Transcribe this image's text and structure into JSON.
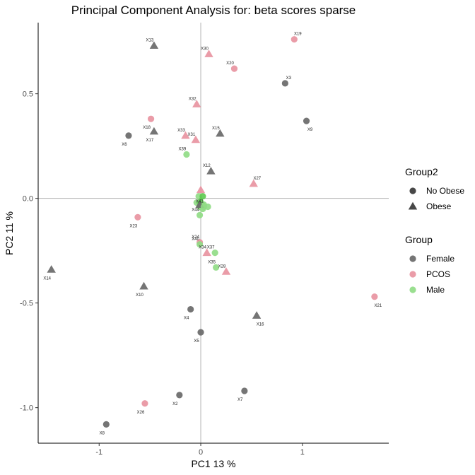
{
  "chart_data": {
    "type": "scatter",
    "title": "Principal Component Analysis for:  beta scores sparse",
    "xlabel": "PC1 13 %",
    "ylabel": "PC2 11 %",
    "xlim": [
      -1.6,
      1.85
    ],
    "ylim": [
      -1.17,
      0.84
    ],
    "xticks": [
      -1,
      0,
      1
    ],
    "xtick_labels": [
      "-1",
      "0",
      "1"
    ],
    "yticks": [
      -1.0,
      -0.5,
      0.0,
      0.5
    ],
    "ytick_labels": [
      "-1.0",
      "-0.5",
      "0.0",
      "0.5"
    ],
    "reference_lines": {
      "x": 0,
      "y": 0
    },
    "grid": false,
    "legend_position": "right",
    "legends": [
      {
        "title": "Group2",
        "entries": [
          {
            "label": "No Obese",
            "shape": "circle"
          },
          {
            "label": "Obese",
            "shape": "triangle"
          }
        ]
      },
      {
        "title": "Group",
        "entries": [
          {
            "label": "Female",
            "color": "#666666"
          },
          {
            "label": "PCOS",
            "color": "#e8919e"
          },
          {
            "label": "Male",
            "color": "#8fdc84"
          }
        ]
      }
    ],
    "group_colors": {
      "Female": "#666666",
      "PCOS": "#e8919e",
      "Male": "#8fdc84",
      "MaleDense": "#5cc94f"
    },
    "points": [
      {
        "label": "X13",
        "x": -0.46,
        "y": 0.73,
        "group": "Female",
        "group2": "Obese"
      },
      {
        "label": "X19",
        "x": 0.92,
        "y": 0.76,
        "group": "PCOS",
        "group2": "No Obese"
      },
      {
        "label": "X30",
        "x": 0.08,
        "y": 0.69,
        "group": "PCOS",
        "group2": "Obese"
      },
      {
        "label": "X20",
        "x": 0.33,
        "y": 0.62,
        "group": "PCOS",
        "group2": "No Obese"
      },
      {
        "label": "X3",
        "x": 0.83,
        "y": 0.55,
        "group": "Female",
        "group2": "No Obese"
      },
      {
        "label": "X32",
        "x": -0.04,
        "y": 0.45,
        "group": "PCOS",
        "group2": "Obese"
      },
      {
        "label": "X18",
        "x": -0.49,
        "y": 0.38,
        "group": "PCOS",
        "group2": "No Obese"
      },
      {
        "label": "X9",
        "x": 1.04,
        "y": 0.37,
        "group": "Female",
        "group2": "No Obese"
      },
      {
        "label": "X17",
        "x": -0.46,
        "y": 0.32,
        "group": "Female",
        "group2": "Obese"
      },
      {
        "label": "X6",
        "x": -0.71,
        "y": 0.3,
        "group": "Female",
        "group2": "No Obese"
      },
      {
        "label": "X33",
        "x": -0.15,
        "y": 0.3,
        "group": "PCOS",
        "group2": "Obese"
      },
      {
        "label": "X15",
        "x": 0.19,
        "y": 0.31,
        "group": "Female",
        "group2": "Obese"
      },
      {
        "label": "X31",
        "x": -0.05,
        "y": 0.28,
        "group": "PCOS",
        "group2": "Obese"
      },
      {
        "label": "X39",
        "x": -0.14,
        "y": 0.21,
        "group": "Male",
        "group2": "No Obese"
      },
      {
        "label": "X12",
        "x": 0.1,
        "y": 0.13,
        "group": "Female",
        "group2": "Obese"
      },
      {
        "label": "X27",
        "x": 0.52,
        "y": 0.07,
        "group": "PCOS",
        "group2": "Obese"
      },
      {
        "label": "",
        "x": 0.0,
        "y": 0.04,
        "group": "PCOS",
        "group2": "Obese"
      },
      {
        "label": "",
        "x": -0.02,
        "y": 0.01,
        "group": "Male",
        "group2": "No Obese"
      },
      {
        "label": "",
        "x": 0.02,
        "y": 0.01,
        "group": "MaleDense",
        "group2": "No Obese"
      },
      {
        "label": "",
        "x": -0.04,
        "y": -0.02,
        "group": "Male",
        "group2": "No Obese"
      },
      {
        "label": "",
        "x": 0.0,
        "y": -0.01,
        "group": "MaleDense",
        "group2": "Obese"
      },
      {
        "label": "",
        "x": 0.03,
        "y": -0.03,
        "group": "Male",
        "group2": "No Obese"
      },
      {
        "label": "",
        "x": -0.01,
        "y": -0.04,
        "group": "Male",
        "group2": "No Obese"
      },
      {
        "label": "",
        "x": 0.07,
        "y": -0.04,
        "group": "Male",
        "group2": "No Obese"
      },
      {
        "label": "",
        "x": 0.02,
        "y": -0.05,
        "group": "Male",
        "group2": "No Obese"
      },
      {
        "label": "",
        "x": -0.01,
        "y": -0.03,
        "group": "Female",
        "group2": "Obese"
      },
      {
        "label": "X41",
        "x": 0.03,
        "y": -0.04,
        "group": "Male",
        "group2": "No Obese"
      },
      {
        "label": "X44",
        "x": -0.01,
        "y": -0.08,
        "group": "Male",
        "group2": "No Obese"
      },
      {
        "label": "X23",
        "x": -0.62,
        "y": -0.09,
        "group": "PCOS",
        "group2": "No Obese"
      },
      {
        "label": "X24",
        "x": -0.01,
        "y": -0.21,
        "group": "PCOS",
        "group2": "No Obese"
      },
      {
        "label": "X40",
        "x": -0.01,
        "y": -0.22,
        "group": "Male",
        "group2": "No Obese"
      },
      {
        "label": "X37",
        "x": 0.14,
        "y": -0.26,
        "group": "Male",
        "group2": "No Obese"
      },
      {
        "label": "X34",
        "x": 0.06,
        "y": -0.26,
        "group": "PCOS",
        "group2": "Obese"
      },
      {
        "label": "X35",
        "x": 0.15,
        "y": -0.33,
        "group": "Male",
        "group2": "No Obese"
      },
      {
        "label": "X28",
        "x": 0.25,
        "y": -0.35,
        "group": "PCOS",
        "group2": "Obese"
      },
      {
        "label": "X14",
        "x": -1.47,
        "y": -0.34,
        "group": "Female",
        "group2": "Obese"
      },
      {
        "label": "X10",
        "x": -0.56,
        "y": -0.42,
        "group": "Female",
        "group2": "Obese"
      },
      {
        "label": "X21",
        "x": 1.71,
        "y": -0.47,
        "group": "PCOS",
        "group2": "No Obese"
      },
      {
        "label": "X4",
        "x": -0.1,
        "y": -0.53,
        "group": "Female",
        "group2": "No Obese"
      },
      {
        "label": "X16",
        "x": 0.55,
        "y": -0.56,
        "group": "Female",
        "group2": "Obese"
      },
      {
        "label": "X5",
        "x": 0.0,
        "y": -0.64,
        "group": "Female",
        "group2": "No Obese"
      },
      {
        "label": "X7",
        "x": 0.43,
        "y": -0.92,
        "group": "Female",
        "group2": "No Obese"
      },
      {
        "label": "X2",
        "x": -0.21,
        "y": -0.94,
        "group": "Female",
        "group2": "No Obese"
      },
      {
        "label": "X26",
        "x": -0.55,
        "y": -0.98,
        "group": "PCOS",
        "group2": "No Obese"
      },
      {
        "label": "X8",
        "x": -0.93,
        "y": -1.08,
        "group": "Female",
        "group2": "No Obese"
      }
    ]
  }
}
